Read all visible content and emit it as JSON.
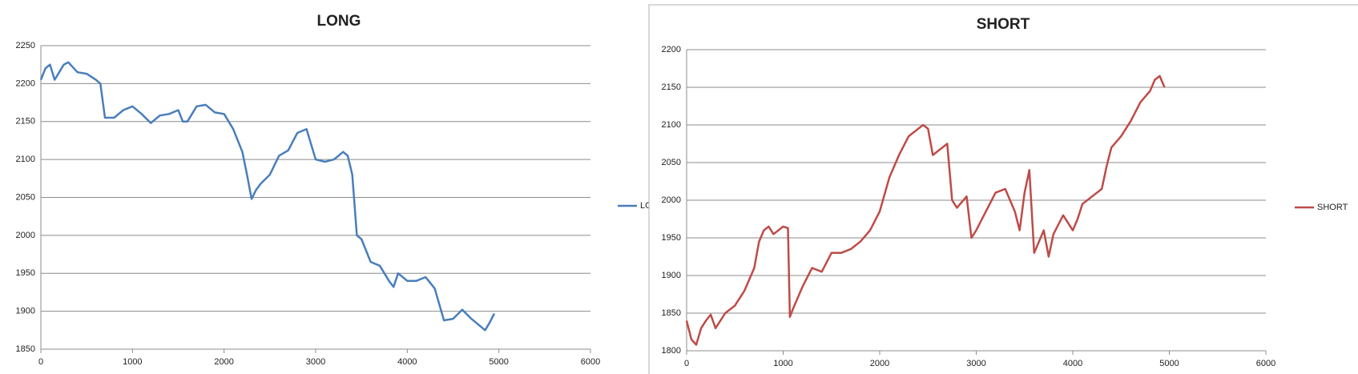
{
  "chart_data": [
    {
      "type": "line",
      "title": "LONG",
      "x": [
        0,
        50,
        100,
        150,
        200,
        250,
        300,
        400,
        500,
        600,
        650,
        700,
        800,
        900,
        1000,
        1100,
        1200,
        1300,
        1400,
        1500,
        1550,
        1600,
        1700,
        1800,
        1900,
        2000,
        2100,
        2200,
        2250,
        2300,
        2350,
        2400,
        2500,
        2600,
        2700,
        2800,
        2900,
        3000,
        3100,
        3200,
        3300,
        3350,
        3400,
        3450,
        3500,
        3600,
        3700,
        3800,
        3850,
        3900,
        4000,
        4100,
        4200,
        4300,
        4400,
        4500,
        4600,
        4700,
        4800,
        4850,
        4900,
        4950
      ],
      "series": [
        {
          "name": "LONG",
          "color": "#4a7ebb",
          "values": [
            2205,
            2220,
            2225,
            2205,
            2215,
            2225,
            2228,
            2215,
            2213,
            2205,
            2200,
            2155,
            2155,
            2165,
            2170,
            2160,
            2148,
            2158,
            2160,
            2165,
            2150,
            2150,
            2170,
            2172,
            2162,
            2160,
            2140,
            2110,
            2080,
            2048,
            2060,
            2068,
            2080,
            2105,
            2112,
            2135,
            2140,
            2100,
            2097,
            2100,
            2110,
            2105,
            2080,
            2000,
            1995,
            1965,
            1960,
            1940,
            1932,
            1950,
            1940,
            1940,
            1945,
            1930,
            1888,
            1890,
            1902,
            1890,
            1880,
            1875,
            1885,
            1897
          ]
        }
      ],
      "xlim": [
        0,
        6000
      ],
      "xticks": [
        0,
        1000,
        2000,
        3000,
        4000,
        5000,
        6000
      ],
      "ylim": [
        1850,
        2250
      ],
      "yticks": [
        1850,
        1900,
        1950,
        2000,
        2050,
        2100,
        2150,
        2200,
        2250
      ],
      "grid": true,
      "legend": "right"
    },
    {
      "type": "line",
      "title": "SHORT",
      "x": [
        0,
        50,
        100,
        150,
        200,
        250,
        300,
        400,
        500,
        600,
        700,
        750,
        800,
        850,
        900,
        1000,
        1050,
        1070,
        1100,
        1200,
        1300,
        1400,
        1500,
        1600,
        1700,
        1800,
        1900,
        2000,
        2100,
        2200,
        2300,
        2400,
        2450,
        2500,
        2550,
        2600,
        2700,
        2750,
        2800,
        2900,
        2950,
        3000,
        3100,
        3200,
        3300,
        3400,
        3450,
        3500,
        3550,
        3600,
        3700,
        3750,
        3800,
        3900,
        4000,
        4050,
        4100,
        4200,
        4300,
        4350,
        4400,
        4500,
        4600,
        4700,
        4800,
        4850,
        4900,
        4950
      ],
      "series": [
        {
          "name": "SHORT",
          "color": "#be4b48",
          "values": [
            1840,
            1815,
            1808,
            1830,
            1840,
            1848,
            1830,
            1850,
            1860,
            1880,
            1910,
            1945,
            1960,
            1965,
            1955,
            1965,
            1963,
            1845,
            1855,
            1885,
            1910,
            1905,
            1930,
            1930,
            1935,
            1945,
            1960,
            1985,
            2030,
            2060,
            2085,
            2095,
            2100,
            2095,
            2060,
            2065,
            2075,
            2000,
            1990,
            2005,
            1950,
            1960,
            1985,
            2010,
            2015,
            1985,
            1960,
            2010,
            2040,
            1930,
            1960,
            1925,
            1955,
            1980,
            1960,
            1975,
            1995,
            2005,
            2015,
            2045,
            2070,
            2085,
            2105,
            2130,
            2145,
            2160,
            2165,
            2150
          ]
        }
      ],
      "xlim": [
        0,
        6000
      ],
      "xticks": [
        0,
        1000,
        2000,
        3000,
        4000,
        5000,
        6000
      ],
      "ylim": [
        1800,
        2200
      ],
      "yticks": [
        1800,
        1850,
        1900,
        1950,
        2000,
        2050,
        2100,
        2150,
        2200
      ],
      "grid": true,
      "legend": "right"
    }
  ]
}
